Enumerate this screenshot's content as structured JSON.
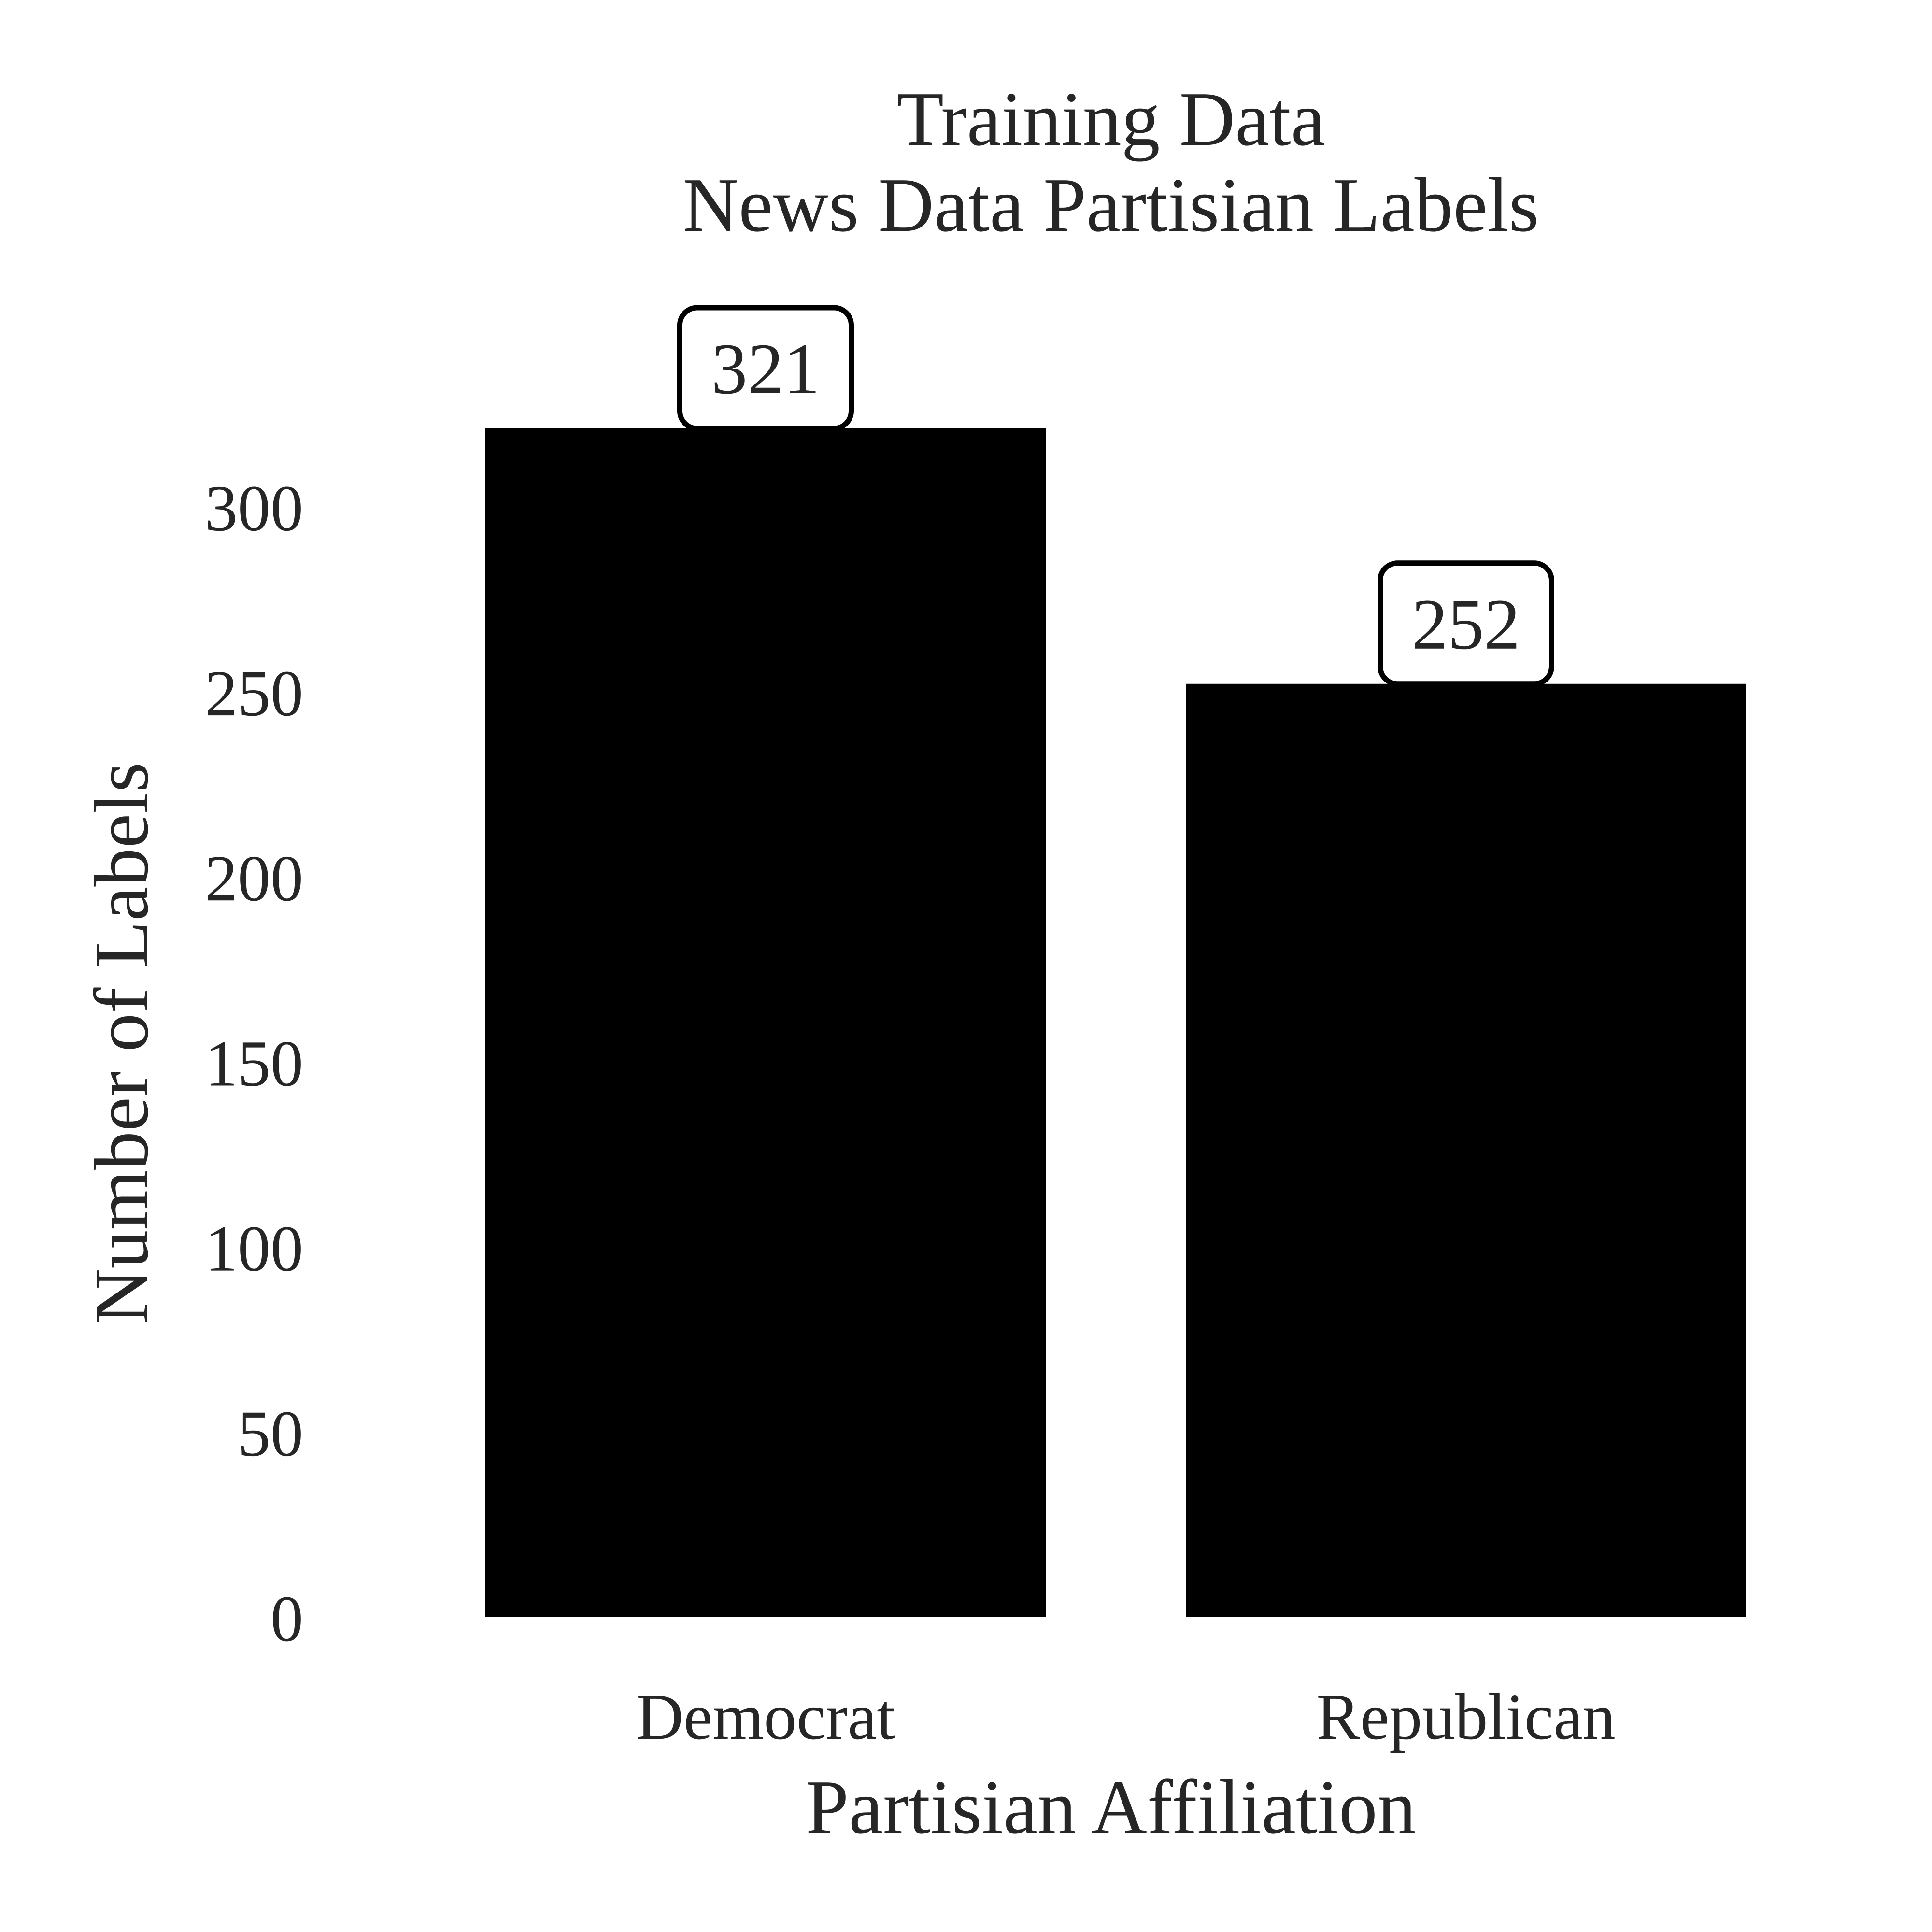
{
  "chart_data": {
    "type": "bar",
    "title": "Training Data",
    "subtitle": "News Data Partisian Labels",
    "xlabel": "Partisian Affiliation",
    "ylabel": "Number of Labels",
    "categories": [
      "Democrat",
      "Republican"
    ],
    "values": [
      321,
      252
    ],
    "data_labels": [
      "321",
      "252"
    ],
    "yticks": [
      "0",
      "50",
      "100",
      "150",
      "200",
      "250",
      "300"
    ],
    "ylim": [
      0,
      321
    ],
    "grid": false,
    "bar_color": "#000000",
    "text_color": "#262626"
  }
}
